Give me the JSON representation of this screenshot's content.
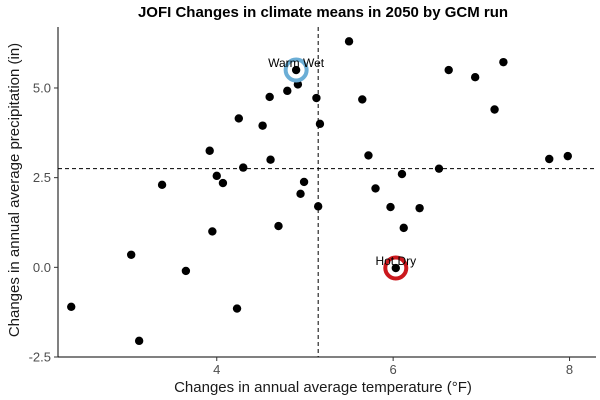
{
  "chart_data": {
    "type": "scatter",
    "title": "JOFI Changes in climate means in 2050 by GCM run",
    "xlabel": "Changes in annual average temperature (°F)",
    "ylabel": "Changes in annual average precipitation (in)",
    "xlim": [
      2.2,
      8.3
    ],
    "ylim": [
      -2.5,
      6.7
    ],
    "xticks": [
      4,
      6,
      8
    ],
    "xtick_labels": [
      "4",
      "6",
      "8"
    ],
    "yticks": [
      -2.5,
      0.0,
      2.5,
      5.0
    ],
    "ytick_labels": [
      "-2.5",
      "0.0",
      "2.5",
      "5.0"
    ],
    "grid": false,
    "vlines": [
      5.15
    ],
    "hlines": [
      2.75
    ],
    "points": [
      {
        "x": 2.35,
        "y": -1.1
      },
      {
        "x": 3.03,
        "y": 0.35
      },
      {
        "x": 3.12,
        "y": -2.05
      },
      {
        "x": 3.38,
        "y": 2.3
      },
      {
        "x": 3.65,
        "y": -0.1
      },
      {
        "x": 3.92,
        "y": 3.25
      },
      {
        "x": 3.95,
        "y": 1.0
      },
      {
        "x": 4.0,
        "y": 2.55
      },
      {
        "x": 4.07,
        "y": 2.35
      },
      {
        "x": 4.23,
        "y": -1.15
      },
      {
        "x": 4.25,
        "y": 4.15
      },
      {
        "x": 4.3,
        "y": 2.78
      },
      {
        "x": 4.52,
        "y": 3.95
      },
      {
        "x": 4.6,
        "y": 4.75
      },
      {
        "x": 4.61,
        "y": 3.0
      },
      {
        "x": 4.7,
        "y": 1.15
      },
      {
        "x": 4.8,
        "y": 4.92
      },
      {
        "x": 4.92,
        "y": 5.1
      },
      {
        "x": 4.95,
        "y": 2.05
      },
      {
        "x": 4.99,
        "y": 2.38
      },
      {
        "x": 5.13,
        "y": 4.72
      },
      {
        "x": 5.15,
        "y": 1.7
      },
      {
        "x": 5.17,
        "y": 4.0
      },
      {
        "x": 5.5,
        "y": 6.3
      },
      {
        "x": 5.65,
        "y": 4.68
      },
      {
        "x": 5.72,
        "y": 3.12
      },
      {
        "x": 5.8,
        "y": 2.2
      },
      {
        "x": 5.97,
        "y": 1.68
      },
      {
        "x": 6.1,
        "y": 2.6
      },
      {
        "x": 6.12,
        "y": 1.1
      },
      {
        "x": 6.3,
        "y": 1.65
      },
      {
        "x": 6.52,
        "y": 2.75
      },
      {
        "x": 6.63,
        "y": 5.5
      },
      {
        "x": 6.93,
        "y": 5.3
      },
      {
        "x": 7.15,
        "y": 4.4
      },
      {
        "x": 7.25,
        "y": 5.72
      },
      {
        "x": 7.77,
        "y": 3.02
      },
      {
        "x": 7.98,
        "y": 3.1
      }
    ],
    "annotations": [
      {
        "label": "Warm Wet",
        "x": 4.9,
        "y": 5.5,
        "color": "#6baed6"
      },
      {
        "label": "Hot Dry",
        "x": 6.03,
        "y": -0.02,
        "color": "#cb181d"
      }
    ]
  }
}
